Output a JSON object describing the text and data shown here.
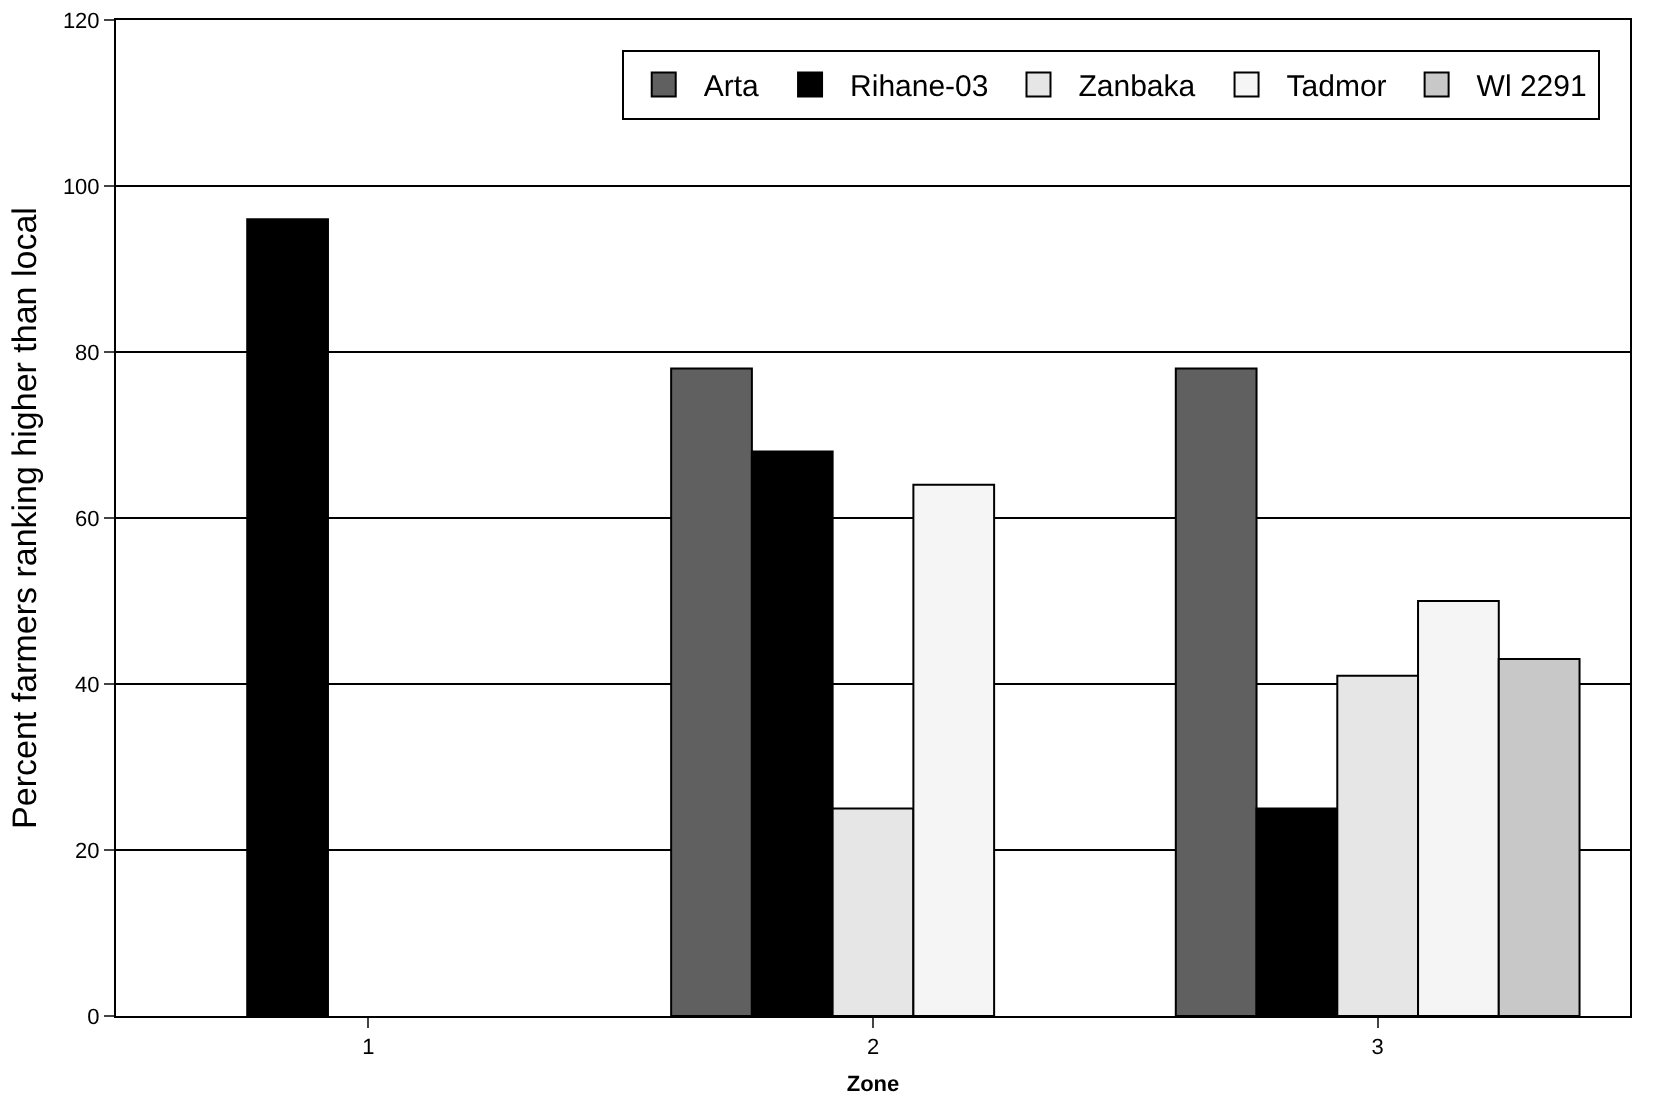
{
  "chart_data": {
    "type": "bar",
    "xlabel": "Zone",
    "ylabel": "Percent farmers ranking higher than local",
    "categories": [
      "1",
      "2",
      "3"
    ],
    "series": [
      {
        "name": "Arta",
        "color": "#606060",
        "values": [
          null,
          78,
          78
        ]
      },
      {
        "name": "Rihane-03",
        "color": "#000000",
        "values": [
          96,
          68,
          25
        ]
      },
      {
        "name": "Zanbaka",
        "color": "#e6e6e6",
        "values": [
          null,
          25,
          41
        ]
      },
      {
        "name": "Tadmor",
        "color": "#f5f5f5",
        "values": [
          null,
          64,
          50
        ]
      },
      {
        "name": "Wl 2291",
        "color": "#c8c8c8",
        "values": [
          null,
          null,
          43
        ]
      }
    ],
    "ylim": [
      0,
      120
    ],
    "yticks": [
      0,
      20,
      40,
      60,
      80,
      100,
      120
    ],
    "grid": "y",
    "legend": "top right"
  }
}
